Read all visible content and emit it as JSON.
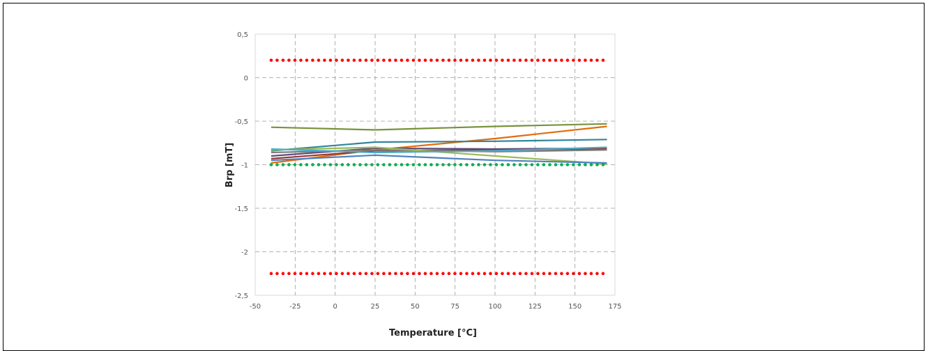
{
  "chart_data": {
    "type": "line",
    "xlabel": "Temperature [°C]",
    "ylabel": "Brp [mT]",
    "xlim": [
      -50,
      175
    ],
    "ylim": [
      -2.5,
      0.5
    ],
    "x_ticks": [
      -50,
      -25,
      0,
      25,
      50,
      75,
      100,
      125,
      150,
      175
    ],
    "y_ticks": [
      -2.5,
      -2,
      -1.5,
      -1,
      -0.5,
      0,
      0.5
    ],
    "y_tick_labels": [
      "-2,5",
      "-2",
      "-1,5",
      "-1",
      "-0,5",
      "0",
      "0,5"
    ],
    "grid": "dashed",
    "series": [
      {
        "color": "#77933C",
        "style": "solid",
        "x": [
          -40,
          25,
          100,
          170
        ],
        "y": [
          -0.57,
          -0.6,
          -0.56,
          -0.53
        ]
      },
      {
        "color": "#E46C0A",
        "style": "solid",
        "x": [
          -40,
          25,
          100,
          170
        ],
        "y": [
          -0.98,
          -0.83,
          -0.7,
          -0.56
        ]
      },
      {
        "color": "#31859C",
        "style": "solid",
        "x": [
          -40,
          25,
          100,
          170
        ],
        "y": [
          -0.84,
          -0.74,
          -0.73,
          -0.71
        ]
      },
      {
        "color": "#604A7B",
        "style": "solid",
        "x": [
          -40,
          25,
          100,
          170
        ],
        "y": [
          -0.9,
          -0.81,
          -0.82,
          -0.81
        ]
      },
      {
        "color": "#943634",
        "style": "solid",
        "x": [
          -40,
          25,
          100,
          170
        ],
        "y": [
          -0.93,
          -0.84,
          -0.83,
          -0.82
        ]
      },
      {
        "color": "#7F7F7F",
        "style": "solid",
        "x": [
          -40,
          25,
          100,
          170
        ],
        "y": [
          -0.86,
          -0.83,
          -0.85,
          -0.83
        ]
      },
      {
        "color": "#9BBB59",
        "style": "solid",
        "x": [
          -40,
          25,
          100,
          170
        ],
        "y": [
          -0.83,
          -0.8,
          -0.9,
          -0.99
        ]
      },
      {
        "color": "#4F81BD",
        "style": "solid",
        "x": [
          -40,
          25,
          100,
          170
        ],
        "y": [
          -0.95,
          -0.89,
          -0.95,
          -0.98
        ]
      },
      {
        "color": "#4BACC6",
        "style": "solid",
        "x": [
          -40,
          25,
          100,
          170
        ],
        "y": [
          -0.82,
          -0.86,
          -0.84,
          -0.8
        ]
      },
      {
        "color": "#FF0000",
        "style": "dotted",
        "x": [
          -40,
          170
        ],
        "y": [
          0.2,
          0.2
        ]
      },
      {
        "color": "#00B050",
        "style": "dotted",
        "x": [
          -40,
          170
        ],
        "y": [
          -1.0,
          -1.0
        ]
      },
      {
        "color": "#FF0000",
        "style": "dotted",
        "x": [
          -40,
          170
        ],
        "y": [
          -2.25,
          -2.25
        ]
      }
    ]
  }
}
